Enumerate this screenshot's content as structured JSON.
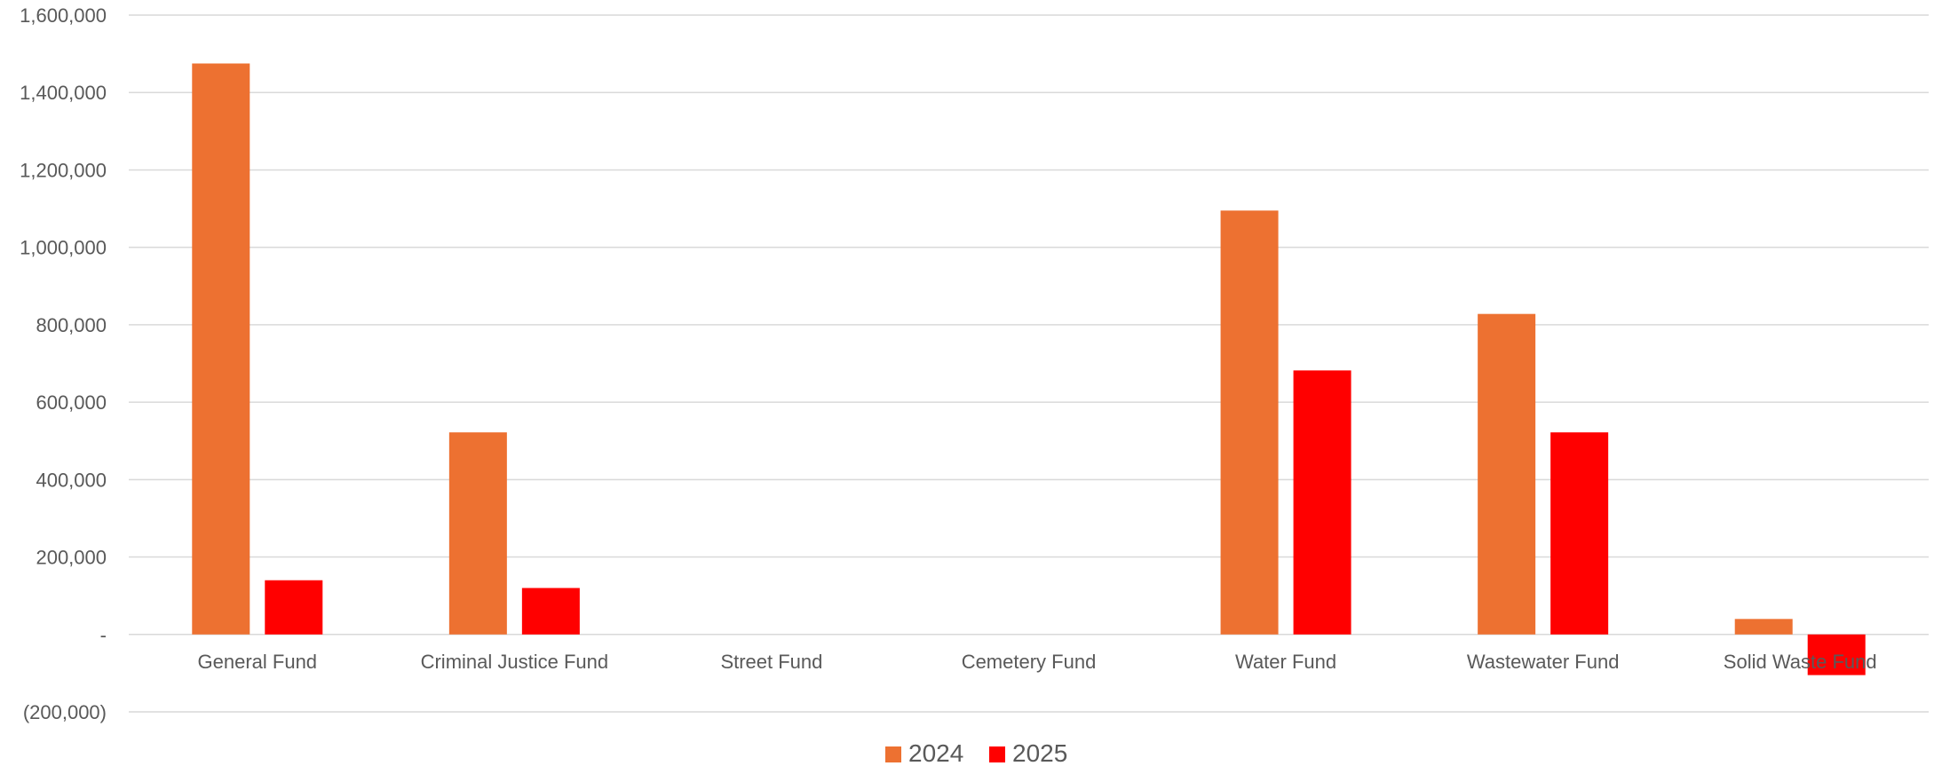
{
  "chart_data": {
    "type": "bar",
    "categories": [
      "General Fund",
      "Criminal Justice Fund",
      "Street Fund",
      "Cemetery Fund",
      "Water Fund",
      "Wastewater Fund",
      "Solid Waste Fund"
    ],
    "series": [
      {
        "name": "2024",
        "color": "#ED7131",
        "values": [
          1475000,
          522000,
          0,
          0,
          1095000,
          828000,
          40000
        ]
      },
      {
        "name": "2025",
        "color": "#FF0000",
        "values": [
          140000,
          120000,
          0,
          0,
          682000,
          522000,
          -105000
        ]
      }
    ],
    "ylim": [
      -200000,
      1600000
    ],
    "yticks": [
      -200000,
      0,
      200000,
      400000,
      600000,
      800000,
      1000000,
      1200000,
      1400000,
      1600000
    ],
    "ytick_labels": [
      "(200,000)",
      "-",
      "200,000",
      "400,000",
      "600,000",
      "800,000",
      "1,000,000",
      "1,200,000",
      "1,400,000",
      "1,600,000"
    ],
    "grid": true,
    "legend": "bottom-center",
    "title": "",
    "xlabel": "",
    "ylabel": ""
  }
}
